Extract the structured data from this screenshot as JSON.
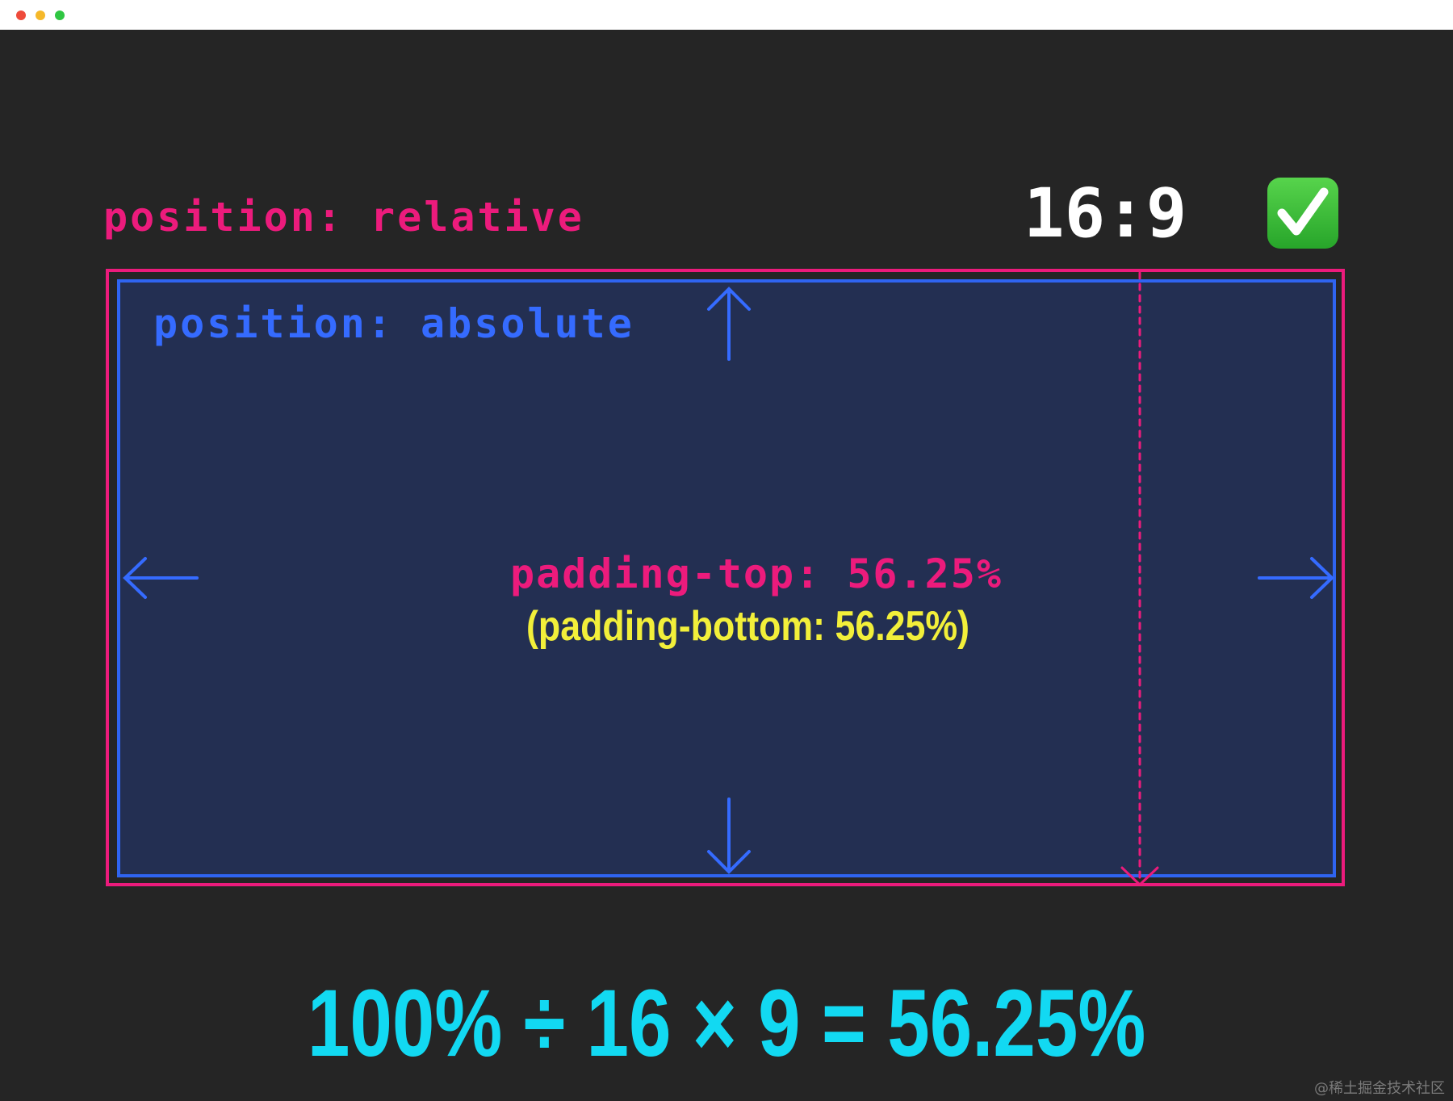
{
  "window": {
    "traffic_lights": [
      "close",
      "minimize",
      "zoom"
    ]
  },
  "labels": {
    "relative": "position: relative",
    "absolute": "position: absolute",
    "ratio": "16:9",
    "ratio_check_icon": "check-mark-button-icon",
    "padding_top": "padding-top: 56.25%",
    "padding_bottom": "(padding-bottom: 56.25%)"
  },
  "formula": "100% ÷ 16 × 9 = 56.25%",
  "watermark": "@稀土掘金技术社区",
  "colors": {
    "background": "#252525",
    "relative_border": "#ec1b7c",
    "absolute_border": "#2f64f0",
    "absolute_fill": "#232f52",
    "formula": "#12d9f2",
    "padding_bottom_text": "#f2ef3a",
    "check_green": "#2fc642"
  }
}
